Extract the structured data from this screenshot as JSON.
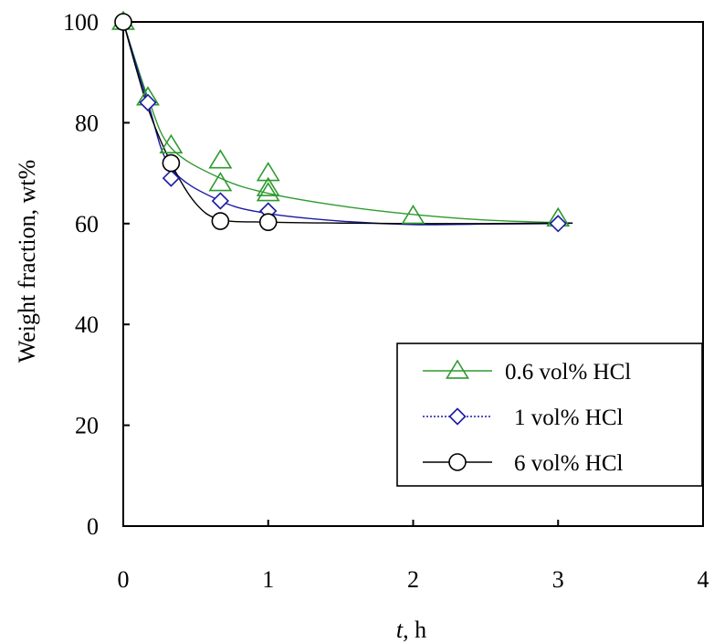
{
  "chart_data": {
    "type": "line",
    "title": "",
    "xlabel_var": "t",
    "xlabel_unit": ", h",
    "ylabel": "Weight fraction, wt%",
    "xlim": [
      0,
      4
    ],
    "ylim": [
      0,
      100
    ],
    "xticks": [
      "0",
      "1",
      "2",
      "3",
      "4"
    ],
    "yticks": [
      "0",
      "20",
      "40",
      "60",
      "80",
      "100"
    ],
    "grid": false,
    "legend_position": "bottom-right",
    "series": [
      {
        "name": "0.6 vol% HCl",
        "color": "#2e9a2e",
        "marker": "triangle",
        "line_style": "solid",
        "points": [
          {
            "x": 0,
            "y": 100
          },
          {
            "x": 0.17,
            "y": 85
          },
          {
            "x": 0.33,
            "y": 75.5
          },
          {
            "x": 0.67,
            "y": 72.5
          },
          {
            "x": 0.67,
            "y": 68
          },
          {
            "x": 1,
            "y": 70
          },
          {
            "x": 1,
            "y": 67
          },
          {
            "x": 1,
            "y": 66
          },
          {
            "x": 2,
            "y": 61.5
          },
          {
            "x": 3,
            "y": 61
          }
        ],
        "fit": [
          [
            0,
            100
          ],
          [
            0.17,
            85
          ],
          [
            0.33,
            75
          ],
          [
            0.67,
            69
          ],
          [
            1,
            66
          ],
          [
            1.5,
            63.5
          ],
          [
            2,
            61.8
          ],
          [
            2.5,
            60.7
          ],
          [
            3,
            60.2
          ],
          [
            3.1,
            60.1
          ]
        ]
      },
      {
        "name": "1 vol% HCl",
        "color": "#1a1aa6",
        "marker": "diamond",
        "line_style": "solid",
        "points": [
          {
            "x": 0,
            "y": 100
          },
          {
            "x": 0.17,
            "y": 84
          },
          {
            "x": 0.33,
            "y": 69
          },
          {
            "x": 0.67,
            "y": 64.5
          },
          {
            "x": 1,
            "y": 62.5
          },
          {
            "x": 3,
            "y": 60
          }
        ],
        "fit": [
          [
            0,
            100
          ],
          [
            0.17,
            84
          ],
          [
            0.33,
            71
          ],
          [
            0.67,
            64.5
          ],
          [
            1,
            62
          ],
          [
            1.5,
            60.5
          ],
          [
            2,
            59.8
          ],
          [
            2.5,
            59.9
          ],
          [
            3,
            60
          ],
          [
            3.1,
            60.1
          ]
        ]
      },
      {
        "name": "6 vol% HCl",
        "color": "#000000",
        "marker": "circle",
        "line_style": "solid",
        "points": [
          {
            "x": 0,
            "y": 100
          },
          {
            "x": 0.33,
            "y": 72
          },
          {
            "x": 0.67,
            "y": 60.5
          },
          {
            "x": 1,
            "y": 60.3
          }
        ],
        "fit": [
          [
            0,
            100
          ],
          [
            0.17,
            83
          ],
          [
            0.33,
            72
          ],
          [
            0.5,
            64
          ],
          [
            0.67,
            60.8
          ],
          [
            1,
            60.3
          ],
          [
            1.5,
            60.1
          ],
          [
            2,
            60
          ],
          [
            2.5,
            60
          ],
          [
            3,
            60.1
          ],
          [
            3.1,
            60.1
          ]
        ]
      }
    ]
  }
}
